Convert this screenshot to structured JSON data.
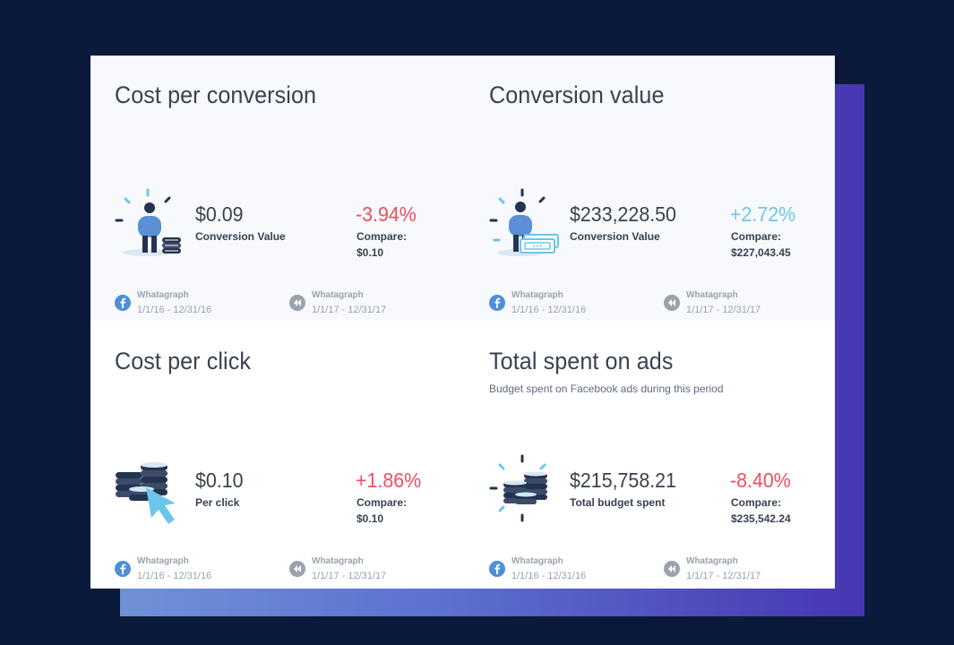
{
  "widgets": [
    {
      "title": "Cost per conversion",
      "subtitle": "",
      "value": "$0.09",
      "value_label": "Conversion Value",
      "change": "-3.94%",
      "change_trend": "negative",
      "compare_label": "Compare:",
      "compare_value": "$0.10",
      "icon": "person-coins-icon",
      "current_source": "Whatagraph",
      "current_range": "1/1/16 - 12/31/16",
      "previous_source": "Whatagraph",
      "previous_range": "1/1/17 - 12/31/17"
    },
    {
      "title": "Conversion value",
      "subtitle": "",
      "value": "$233,228.50",
      "value_label": "Conversion Value",
      "change": "+2.72%",
      "change_trend": "positive",
      "compare_label": "Compare:",
      "compare_value": "$227,043.45",
      "icon": "person-banknotes-icon",
      "current_source": "Whatagraph",
      "current_range": "1/1/16 - 12/31/16",
      "previous_source": "Whatagraph",
      "previous_range": "1/1/17 - 12/31/17"
    },
    {
      "title": "Cost per click",
      "subtitle": "",
      "value": "$0.10",
      "value_label": "Per click",
      "change": "+1.86%",
      "change_trend": "negative",
      "compare_label": "Compare:",
      "compare_value": "$0.10",
      "icon": "coins-cursor-icon",
      "current_source": "Whatagraph",
      "current_range": "1/1/16 - 12/31/16",
      "previous_source": "Whatagraph",
      "previous_range": "1/1/17 - 12/31/17"
    },
    {
      "title": "Total spent on ads",
      "subtitle": "Budget spent on Facebook ads during this period",
      "value": "$215,758.21",
      "value_label": "Total budget spent",
      "change": "-8.40%",
      "change_trend": "negative",
      "compare_label": "Compare:",
      "compare_value": "$235,542.24",
      "icon": "coin-stacks-icon",
      "current_source": "Whatagraph",
      "current_range": "1/1/16 - 12/31/16",
      "previous_source": "Whatagraph",
      "previous_range": "1/1/17 - 12/31/17"
    }
  ],
  "colors": {
    "background": "#0b1a3a",
    "negative": "#ef4e5e",
    "positive": "#6cc6ea",
    "text": "#38424f",
    "muted": "#9aa2ad"
  }
}
